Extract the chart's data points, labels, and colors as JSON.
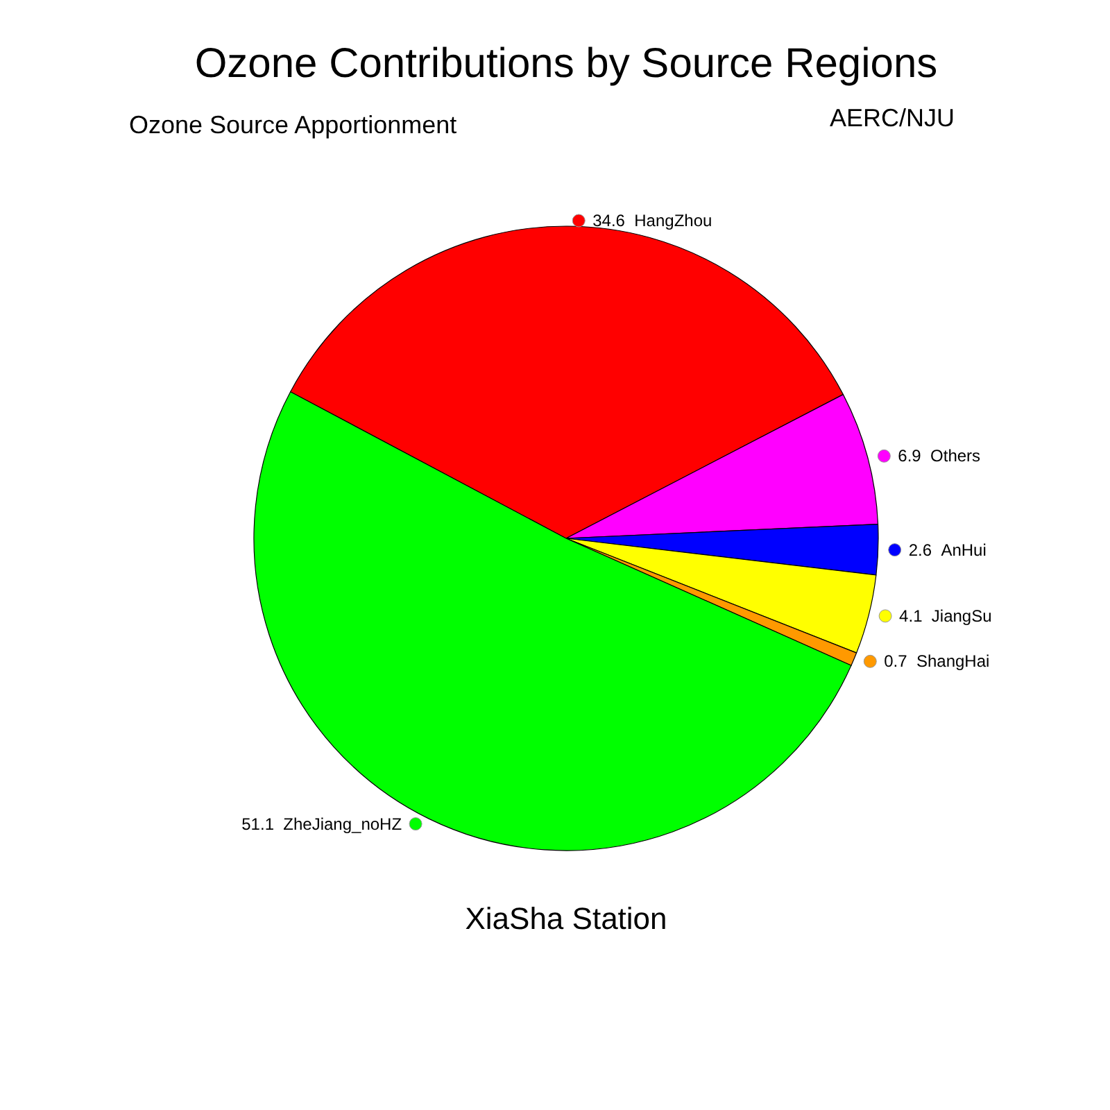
{
  "chart_data": {
    "type": "pie",
    "title": "Ozone Contributions by Source Regions",
    "subtitle": "Ozone Source Apportionment",
    "categories": [
      "HangZhou",
      "Others",
      "AnHui",
      "JiangSu",
      "ShangHai",
      "ZheJiang_noHZ"
    ],
    "values": [
      34.6,
      6.9,
      2.6,
      4.1,
      0.7,
      51.1
    ],
    "colors": [
      "#ff0000",
      "#ff00ff",
      "#0000ff",
      "#ffff00",
      "#ff9900",
      "#00ff00"
    ],
    "data_labels": true,
    "annotations": [
      "AERC/NJU",
      "XiaSha Station"
    ]
  }
}
